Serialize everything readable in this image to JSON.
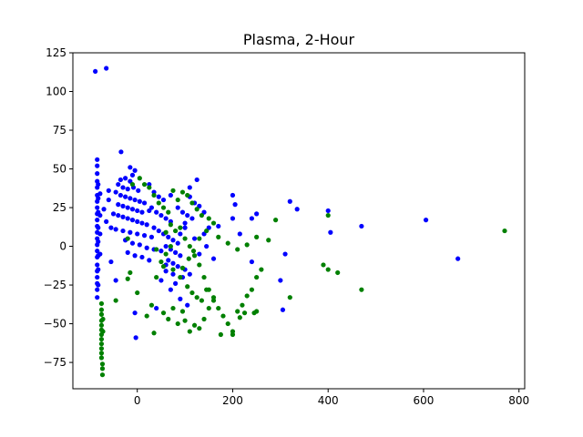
{
  "chart_data": {
    "type": "scatter",
    "title": "Plasma, 2-Hour",
    "xlabel": "",
    "ylabel": "",
    "xlim": [
      -135,
      812
    ],
    "ylim": [
      -92,
      125
    ],
    "x_ticks": [
      0,
      200,
      400,
      600,
      800
    ],
    "y_ticks": [
      -75,
      -50,
      -25,
      0,
      25,
      50,
      75,
      100,
      125
    ],
    "x_tick_labels": [
      "0",
      "200",
      "400",
      "600",
      "800"
    ],
    "y_tick_labels": [
      "−75",
      "−50",
      "−25",
      "0",
      "25",
      "50",
      "75",
      "100",
      "125"
    ],
    "grid": false,
    "legend": "none",
    "series": [
      {
        "color": "#0000ff",
        "points": [
          [
            -88,
            113
          ],
          [
            -65,
            115
          ],
          [
            -84,
            56
          ],
          [
            -84,
            52
          ],
          [
            -84,
            47
          ],
          [
            -84,
            42
          ],
          [
            -84,
            38
          ],
          [
            -84,
            33
          ],
          [
            -84,
            29
          ],
          [
            -84,
            25
          ],
          [
            -84,
            21
          ],
          [
            -84,
            17
          ],
          [
            -84,
            13
          ],
          [
            -84,
            9
          ],
          [
            -84,
            5
          ],
          [
            -84,
            1
          ],
          [
            -84,
            -3
          ],
          [
            -84,
            -7
          ],
          [
            -84,
            -12
          ],
          [
            -84,
            -16
          ],
          [
            -84,
            -20
          ],
          [
            -84,
            -24
          ],
          [
            -84,
            -28
          ],
          [
            -84,
            -33
          ],
          [
            -82,
            40
          ],
          [
            -82,
            31
          ],
          [
            -82,
            22
          ],
          [
            -82,
            12
          ],
          [
            -82,
            3
          ],
          [
            -82,
            -6
          ],
          [
            -82,
            -15
          ],
          [
            -82,
            -25
          ],
          [
            -78,
            34
          ],
          [
            -78,
            20
          ],
          [
            -78,
            8
          ],
          [
            -78,
            -5
          ],
          [
            -34,
            61
          ],
          [
            -15,
            51
          ],
          [
            -5,
            49
          ],
          [
            -10,
            46
          ],
          [
            -25,
            44
          ],
          [
            -15,
            42
          ],
          [
            -35,
            43
          ],
          [
            -40,
            40
          ],
          [
            -30,
            38
          ],
          [
            -20,
            37
          ],
          [
            -8,
            38
          ],
          [
            2,
            36
          ],
          [
            -45,
            35
          ],
          [
            -35,
            33
          ],
          [
            -25,
            32
          ],
          [
            -15,
            31
          ],
          [
            -5,
            30
          ],
          [
            5,
            29
          ],
          [
            15,
            28
          ],
          [
            -40,
            27
          ],
          [
            -30,
            26
          ],
          [
            -20,
            25
          ],
          [
            -10,
            24
          ],
          [
            0,
            23
          ],
          [
            10,
            22
          ],
          [
            -50,
            21
          ],
          [
            -40,
            20
          ],
          [
            -30,
            19
          ],
          [
            -20,
            18
          ],
          [
            -10,
            17
          ],
          [
            0,
            16
          ],
          [
            10,
            15
          ],
          [
            20,
            14
          ],
          [
            -55,
            12
          ],
          [
            -45,
            11
          ],
          [
            -30,
            10
          ],
          [
            -15,
            9
          ],
          [
            0,
            8
          ],
          [
            15,
            7
          ],
          [
            30,
            6
          ],
          [
            -25,
            4
          ],
          [
            -10,
            2
          ],
          [
            5,
            1
          ],
          [
            20,
            -1
          ],
          [
            35,
            -2
          ],
          [
            50,
            -3
          ],
          [
            -20,
            -4
          ],
          [
            -5,
            -6
          ],
          [
            10,
            -7
          ],
          [
            25,
            -9
          ],
          [
            -60,
            30
          ],
          [
            -65,
            16
          ],
          [
            -60,
            36
          ],
          [
            -70,
            24
          ],
          [
            -55,
            -10
          ],
          [
            -45,
            -22
          ],
          [
            25,
            40
          ],
          [
            35,
            35
          ],
          [
            45,
            32
          ],
          [
            55,
            30
          ],
          [
            30,
            25
          ],
          [
            40,
            22
          ],
          [
            50,
            20
          ],
          [
            60,
            18
          ],
          [
            70,
            16
          ],
          [
            35,
            12
          ],
          [
            45,
            10
          ],
          [
            55,
            8
          ],
          [
            65,
            6
          ],
          [
            75,
            4
          ],
          [
            85,
            2
          ],
          [
            60,
            0
          ],
          [
            70,
            -2
          ],
          [
            80,
            -4
          ],
          [
            90,
            -6
          ],
          [
            65,
            -9
          ],
          [
            75,
            -11
          ],
          [
            85,
            -13
          ],
          [
            100,
            -15
          ],
          [
            110,
            -18
          ],
          [
            95,
            -20
          ],
          [
            80,
            -24
          ],
          [
            60,
            -12
          ],
          [
            70,
            -28
          ],
          [
            90,
            -34
          ],
          [
            105,
            -38
          ],
          [
            40,
            -40
          ],
          [
            -5,
            -43
          ],
          [
            -3,
            -59
          ],
          [
            25,
            23
          ],
          [
            85,
            25
          ],
          [
            95,
            22
          ],
          [
            105,
            20
          ],
          [
            115,
            18
          ],
          [
            125,
            43
          ],
          [
            110,
            32
          ],
          [
            120,
            28
          ],
          [
            130,
            26
          ],
          [
            140,
            22
          ],
          [
            150,
            12
          ],
          [
            140,
            8
          ],
          [
            120,
            5
          ],
          [
            100,
            12
          ],
          [
            90,
            8
          ],
          [
            130,
            -5
          ],
          [
            145,
            0
          ],
          [
            160,
            -8
          ],
          [
            170,
            13
          ],
          [
            110,
            38
          ],
          [
            70,
            33
          ],
          [
            100,
            15
          ],
          [
            60,
            -16
          ],
          [
            50,
            -22
          ],
          [
            75,
            -18
          ],
          [
            200,
            33
          ],
          [
            205,
            27
          ],
          [
            215,
            8
          ],
          [
            200,
            18
          ],
          [
            240,
            18
          ],
          [
            250,
            21
          ],
          [
            240,
            -10
          ],
          [
            300,
            -22
          ],
          [
            310,
            -5
          ],
          [
            320,
            29
          ],
          [
            335,
            24
          ],
          [
            400,
            23
          ],
          [
            405,
            9
          ],
          [
            470,
            13
          ],
          [
            605,
            17
          ],
          [
            672,
            -8
          ],
          [
            305,
            -41
          ]
        ]
      },
      {
        "color": "#008000",
        "points": [
          [
            -75,
            -37
          ],
          [
            -75,
            -41
          ],
          [
            -75,
            -44
          ],
          [
            -75,
            -48
          ],
          [
            -75,
            -51
          ],
          [
            -75,
            -54
          ],
          [
            -75,
            -57
          ],
          [
            -75,
            -60
          ],
          [
            -75,
            -63
          ],
          [
            -75,
            -66
          ],
          [
            -75,
            -69
          ],
          [
            -75,
            -72
          ],
          [
            -73,
            -76
          ],
          [
            -73,
            -79
          ],
          [
            -73,
            -83
          ],
          [
            -72,
            -55
          ],
          [
            -72,
            -47
          ],
          [
            5,
            44
          ],
          [
            15,
            40
          ],
          [
            -10,
            40
          ],
          [
            25,
            38
          ],
          [
            35,
            33
          ],
          [
            45,
            28
          ],
          [
            55,
            25
          ],
          [
            65,
            22
          ],
          [
            75,
            36
          ],
          [
            85,
            30
          ],
          [
            95,
            35
          ],
          [
            105,
            33
          ],
          [
            115,
            28
          ],
          [
            125,
            24
          ],
          [
            135,
            20
          ],
          [
            150,
            18
          ],
          [
            -20,
            5
          ],
          [
            -15,
            -17
          ],
          [
            -45,
            -35
          ],
          [
            -20,
            -21
          ],
          [
            0,
            -30
          ],
          [
            20,
            -45
          ],
          [
            30,
            -38
          ],
          [
            40,
            -20
          ],
          [
            50,
            -10
          ],
          [
            60,
            -5
          ],
          [
            70,
            0
          ],
          [
            80,
            10
          ],
          [
            90,
            12
          ],
          [
            100,
            5
          ],
          [
            110,
            0
          ],
          [
            120,
            -6
          ],
          [
            130,
            -12
          ],
          [
            140,
            -20
          ],
          [
            150,
            -28
          ],
          [
            160,
            -35
          ],
          [
            170,
            -40
          ],
          [
            180,
            -45
          ],
          [
            190,
            -50
          ],
          [
            200,
            -55
          ],
          [
            210,
            -42
          ],
          [
            220,
            -38
          ],
          [
            230,
            -32
          ],
          [
            240,
            -28
          ],
          [
            250,
            -20
          ],
          [
            260,
            -15
          ],
          [
            35,
            -56
          ],
          [
            55,
            -43
          ],
          [
            65,
            -47
          ],
          [
            75,
            -40
          ],
          [
            85,
            -50
          ],
          [
            95,
            -42
          ],
          [
            100,
            -48
          ],
          [
            110,
            -55
          ],
          [
            120,
            -51
          ],
          [
            130,
            -53
          ],
          [
            140,
            -47
          ],
          [
            150,
            -40
          ],
          [
            160,
            -33
          ],
          [
            175,
            -57
          ],
          [
            200,
            -57
          ],
          [
            215,
            -46
          ],
          [
            225,
            -43
          ],
          [
            245,
            -43
          ],
          [
            250,
            -42
          ],
          [
            40,
            -2
          ],
          [
            55,
            -13
          ],
          [
            75,
            -15
          ],
          [
            90,
            -20
          ],
          [
            105,
            -26
          ],
          [
            115,
            -30
          ],
          [
            125,
            -33
          ],
          [
            135,
            -35
          ],
          [
            145,
            -28
          ],
          [
            95,
            -14
          ],
          [
            108,
            -8
          ],
          [
            118,
            -3
          ],
          [
            130,
            5
          ],
          [
            145,
            10
          ],
          [
            160,
            15
          ],
          [
            170,
            6
          ],
          [
            190,
            2
          ],
          [
            210,
            -2
          ],
          [
            230,
            1
          ],
          [
            250,
            6
          ],
          [
            275,
            4
          ],
          [
            290,
            17
          ],
          [
            320,
            -33
          ],
          [
            390,
            -12
          ],
          [
            400,
            -15
          ],
          [
            420,
            -17
          ],
          [
            470,
            -28
          ],
          [
            400,
            20
          ],
          [
            770,
            10
          ],
          [
            60,
            9
          ],
          [
            70,
            14
          ]
        ]
      }
    ]
  }
}
